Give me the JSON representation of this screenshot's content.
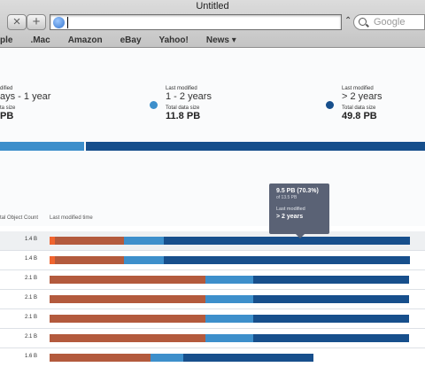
{
  "browser": {
    "title": "Untitled",
    "search_placeholder": "Google",
    "bookmarks": [
      "ple",
      ".Mac",
      "Amazon",
      "eBay",
      "Yahoo!",
      "News ▾"
    ]
  },
  "summary": [
    {
      "label": "dified",
      "range": "ays - 1 year",
      "size_label": "ta size",
      "size": "PB"
    },
    {
      "label": "Last modified",
      "range": "1 - 2 years",
      "size_label": "Total data size",
      "size": "11.8 PB"
    },
    {
      "label": "Last modified",
      "range": "> 2 years",
      "size_label": "Total data size",
      "size": "49.8 PB"
    }
  ],
  "columns": {
    "count": "tal Object Count",
    "time": "Last modified time"
  },
  "rows": [
    {
      "count": "1.4 B",
      "segments": [
        0.05,
        0.6,
        0.33,
        1.0
      ]
    },
    {
      "count": "1.4 B",
      "segments": [
        0.05,
        0.6,
        0.33,
        1.0
      ]
    },
    {
      "count": "2.1 B",
      "segments": [
        0.0,
        1.0,
        0.3,
        1.0
      ]
    },
    {
      "count": "2.1 B",
      "segments": [
        0.0,
        1.0,
        0.3,
        1.0
      ]
    },
    {
      "count": "2.1 B",
      "segments": [
        0.0,
        1.0,
        0.3,
        1.0
      ]
    },
    {
      "count": "2.1 B",
      "segments": [
        0.0,
        1.0,
        0.3,
        1.0
      ]
    },
    {
      "count": "1.6 B",
      "segments": [
        0.0,
        0.55,
        0.18,
        0.7
      ]
    }
  ],
  "tooltip": {
    "value": "9.5 PB  (70.3%)",
    "sub": "of 13.5 PB",
    "label": "Last modified",
    "range": "> 2 years"
  },
  "colors": {
    "orange": "#f0642f",
    "rust": "#b35a3d",
    "mid_blue": "#3d8fcb",
    "dark_blue": "#174f8c",
    "tooltip": "#5a6275"
  }
}
